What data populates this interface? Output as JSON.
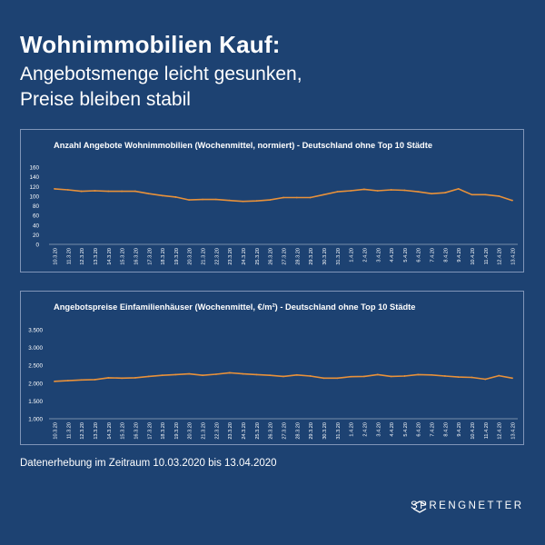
{
  "header": {
    "title": "Wohnimmobilien Kauf:",
    "subtitle_line1": "Angebotsmenge leicht gesunken,",
    "subtitle_line2": "Preise bleiben stabil"
  },
  "footer": {
    "note": "Datenerhebung im Zeitraum 10.03.2020 bis 13.04.2020"
  },
  "logo": {
    "text_left": "SPRENGNE",
    "text_right": "TTER"
  },
  "colors": {
    "background": "#1d4272",
    "line": "#e8913a",
    "text": "#ffffff",
    "panel_border": "#8095b8"
  },
  "chart_data": [
    {
      "type": "line",
      "title": "Anzahl Angebote Wohnimmobilien (Wochenmittel, normiert) - Deutschland ohne Top 10 Städte",
      "ylim": [
        0,
        160
      ],
      "yticks": [
        "0",
        "20",
        "40",
        "60",
        "80",
        "100",
        "120",
        "140",
        "160"
      ],
      "grid": false,
      "categories": [
        "10.3.20",
        "11.3.20",
        "12.3.20",
        "13.3.20",
        "14.3.20",
        "15.3.20",
        "16.3.20",
        "17.3.20",
        "18.3.20",
        "19.3.20",
        "20.3.20",
        "21.3.20",
        "22.3.20",
        "23.3.20",
        "24.3.20",
        "25.3.20",
        "26.3.20",
        "27.3.20",
        "28.3.20",
        "29.3.20",
        "30.3.20",
        "31.3.20",
        "1.4.20",
        "2.4.20",
        "3.4.20",
        "4.4.20",
        "5.4.20",
        "6.4.20",
        "7.4.20",
        "8.4.20",
        "9.4.20",
        "10.4.20",
        "11.4.20",
        "12.4.20",
        "13.4.20"
      ],
      "values": [
        115,
        113,
        110,
        111,
        110,
        110,
        110,
        105,
        101,
        98,
        92,
        93,
        93,
        91,
        89,
        90,
        92,
        97,
        97,
        97,
        103,
        109,
        111,
        114,
        111,
        113,
        112,
        109,
        105,
        107,
        115,
        103,
        103,
        100,
        91
      ]
    },
    {
      "type": "line",
      "title": "Angebotspreise Einfamilienhäuser (Wochenmittel, €/m²) - Deutschland ohne Top 10 Städte",
      "ylim": [
        1000,
        3500
      ],
      "yticks": [
        "1.000",
        "1.500",
        "2.000",
        "2.500",
        "3.000",
        "3.500"
      ],
      "grid": false,
      "categories": [
        "10.3.20",
        "11.3.20",
        "12.3.20",
        "13.3.20",
        "14.3.20",
        "15.3.20",
        "16.3.20",
        "17.3.20",
        "18.3.20",
        "19.3.20",
        "20.3.20",
        "21.3.20",
        "22.3.20",
        "23.3.20",
        "24.3.20",
        "25.3.20",
        "26.3.20",
        "27.3.20",
        "28.3.20",
        "29.3.20",
        "30.3.20",
        "31.3.20",
        "1.4.20",
        "2.4.20",
        "3.4.20",
        "4.4.20",
        "5.4.20",
        "6.4.20",
        "7.4.20",
        "8.4.20",
        "9.4.20",
        "10.4.20",
        "11.4.20",
        "12.4.20",
        "13.4.20"
      ],
      "values": [
        2050,
        2070,
        2090,
        2100,
        2150,
        2140,
        2150,
        2190,
        2220,
        2240,
        2260,
        2220,
        2250,
        2290,
        2260,
        2240,
        2220,
        2190,
        2230,
        2200,
        2140,
        2140,
        2180,
        2190,
        2240,
        2190,
        2200,
        2240,
        2230,
        2200,
        2170,
        2160,
        2110,
        2210,
        2140
      ]
    }
  ]
}
